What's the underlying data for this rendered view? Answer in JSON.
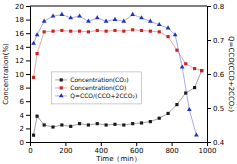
{
  "chart_data": {
    "type": "line",
    "xlabel": "Time（min）",
    "ylabel": "Concentration(%)",
    "y2label": "Q=CCO(CCO+2CCO₂)",
    "xlim": [
      0,
      1000
    ],
    "xticks": [
      0,
      200,
      400,
      600,
      800,
      1000
    ],
    "ylim": [
      0,
      20
    ],
    "yticks": [
      0,
      2,
      4,
      6,
      8,
      10,
      12,
      14,
      16,
      18,
      20
    ],
    "y2lim": [
      0.4,
      0.8
    ],
    "y2ticks": [
      0.4,
      0.5,
      0.6,
      0.7,
      0.8
    ],
    "grid": false,
    "legend": "lower left",
    "series": [
      {
        "name": "Concentration(CO₂)",
        "color": "#1a1a1a",
        "marker": "square",
        "line_style": "solid",
        "x": [
          20,
          40,
          80,
          130,
          180,
          230,
          280,
          330,
          380,
          430,
          480,
          530,
          580,
          630,
          680,
          730,
          780,
          830,
          880,
          930,
          970
        ],
        "values": [
          1.0,
          3.8,
          2.5,
          2.2,
          2.5,
          2.3,
          2.7,
          2.5,
          2.7,
          2.5,
          2.6,
          2.5,
          2.7,
          2.8,
          3.0,
          3.5,
          4.2,
          5.5,
          7.2,
          8.0,
          10.5
        ]
      },
      {
        "name": "Concentration(CO)",
        "color": "#cc2222",
        "marker": "square",
        "line_style": "solid",
        "x": [
          20,
          40,
          80,
          130,
          180,
          230,
          280,
          330,
          380,
          430,
          480,
          530,
          580,
          630,
          680,
          730,
          780,
          830,
          880,
          930,
          970
        ],
        "values": [
          9.5,
          13.0,
          16.2,
          16.3,
          16.4,
          16.3,
          16.3,
          16.2,
          16.4,
          16.3,
          16.4,
          16.3,
          16.5,
          16.4,
          16.3,
          16.2,
          15.5,
          13.5,
          11.5,
          10.8,
          10.5
        ]
      },
      {
        "name": "Q=CCO/(CCO+2CCO₂)",
        "color": "#2233bb",
        "marker": "triangle",
        "line_style": "solid",
        "axis": "y2",
        "x": [
          20,
          40,
          80,
          130,
          180,
          230,
          280,
          330,
          380,
          430,
          480,
          530,
          580,
          630,
          680,
          730,
          780,
          820,
          860,
          900,
          940
        ],
        "values": [
          0.69,
          0.715,
          0.755,
          0.77,
          0.775,
          0.765,
          0.77,
          0.755,
          0.765,
          0.755,
          0.76,
          0.755,
          0.775,
          0.765,
          0.755,
          0.745,
          0.735,
          0.715,
          0.62,
          0.495,
          0.42
        ]
      }
    ]
  }
}
